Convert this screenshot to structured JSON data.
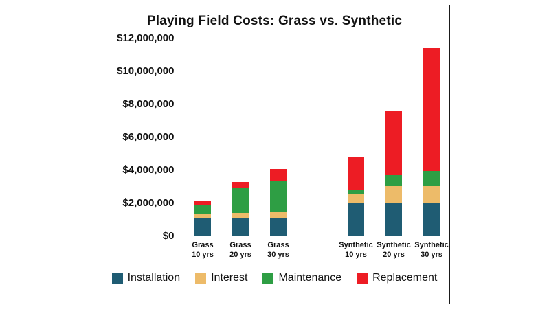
{
  "title": "Playing Field Costs: Grass vs. Synthetic",
  "chart_data": {
    "type": "bar",
    "stacked": true,
    "title": "Playing Field Costs: Grass vs. Synthetic",
    "categories": [
      {
        "line1": "Grass",
        "line2": "10 yrs",
        "group": "grass"
      },
      {
        "line1": "Grass",
        "line2": "20 yrs",
        "group": "grass"
      },
      {
        "line1": "Grass",
        "line2": "30 yrs",
        "group": "grass"
      },
      {
        "line1": "Synthetic",
        "line2": "10 yrs",
        "group": "synthetic"
      },
      {
        "line1": "Synthetic",
        "line2": "20 yrs",
        "group": "synthetic"
      },
      {
        "line1": "Synthetic",
        "line2": "30 yrs",
        "group": "synthetic"
      }
    ],
    "series": [
      {
        "name": "Installation",
        "color": "#1F5C73",
        "values": [
          1100000,
          1100000,
          1100000,
          2000000,
          2000000,
          2000000
        ]
      },
      {
        "name": "Interest",
        "color": "#EDBB69",
        "values": [
          250000,
          300000,
          350000,
          550000,
          1050000,
          1050000
        ]
      },
      {
        "name": "Maintenance",
        "color": "#2E9E44",
        "values": [
          550000,
          1500000,
          1900000,
          250000,
          650000,
          900000
        ]
      },
      {
        "name": "Replacement",
        "color": "#ED1C24",
        "values": [
          250000,
          400000,
          750000,
          2000000,
          3900000,
          7450000
        ]
      }
    ],
    "yticks": [
      {
        "label": "$0",
        "value": 0
      },
      {
        "label": "$2,000,000",
        "value": 2000000
      },
      {
        "label": "$4,000,000",
        "value": 4000000
      },
      {
        "label": "$6,000,000",
        "value": 6000000
      },
      {
        "label": "$8,000,000",
        "value": 8000000
      },
      {
        "label": "$10,000,000",
        "value": 10000000
      },
      {
        "label": "$12,000,000",
        "value": 12000000
      }
    ],
    "ylim": [
      0,
      12000000
    ],
    "grid": false,
    "legend_position": "bottom",
    "legend_labels": [
      "Installation",
      "Interest",
      "Maintenance",
      "Replacement"
    ]
  }
}
